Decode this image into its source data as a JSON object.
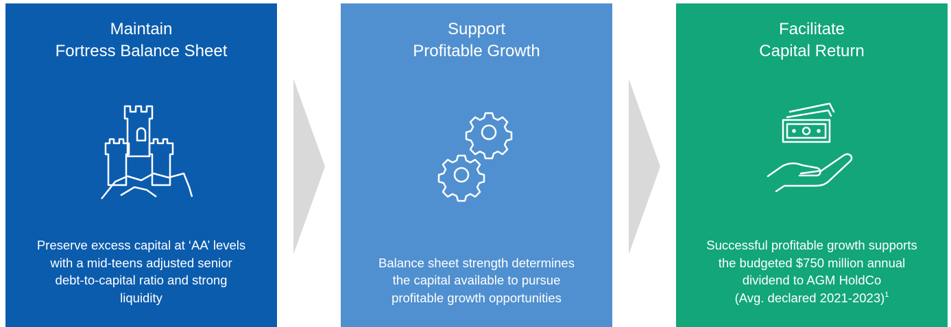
{
  "panels": [
    {
      "title_lines": [
        "Maintain",
        "Fortress Balance Sheet"
      ],
      "body_lines": [
        "Preserve excess capital at ‘AA’ levels",
        "with a mid-teens adjusted senior",
        "debt-to-capital ratio and strong",
        "liquidity"
      ]
    },
    {
      "title_lines": [
        "Support",
        "Profitable Growth"
      ],
      "body_lines": [
        "Balance sheet strength determines",
        "the capital available to pursue",
        "profitable growth opportunities"
      ]
    },
    {
      "title_lines": [
        "Facilitate",
        "Capital Return"
      ],
      "body_lines": [
        "Successful profitable growth supports",
        "the budgeted $750 million annual",
        "dividend to AGM HoldCo",
        "(Avg. declared 2021-2023)"
      ],
      "footnote": "1"
    }
  ]
}
